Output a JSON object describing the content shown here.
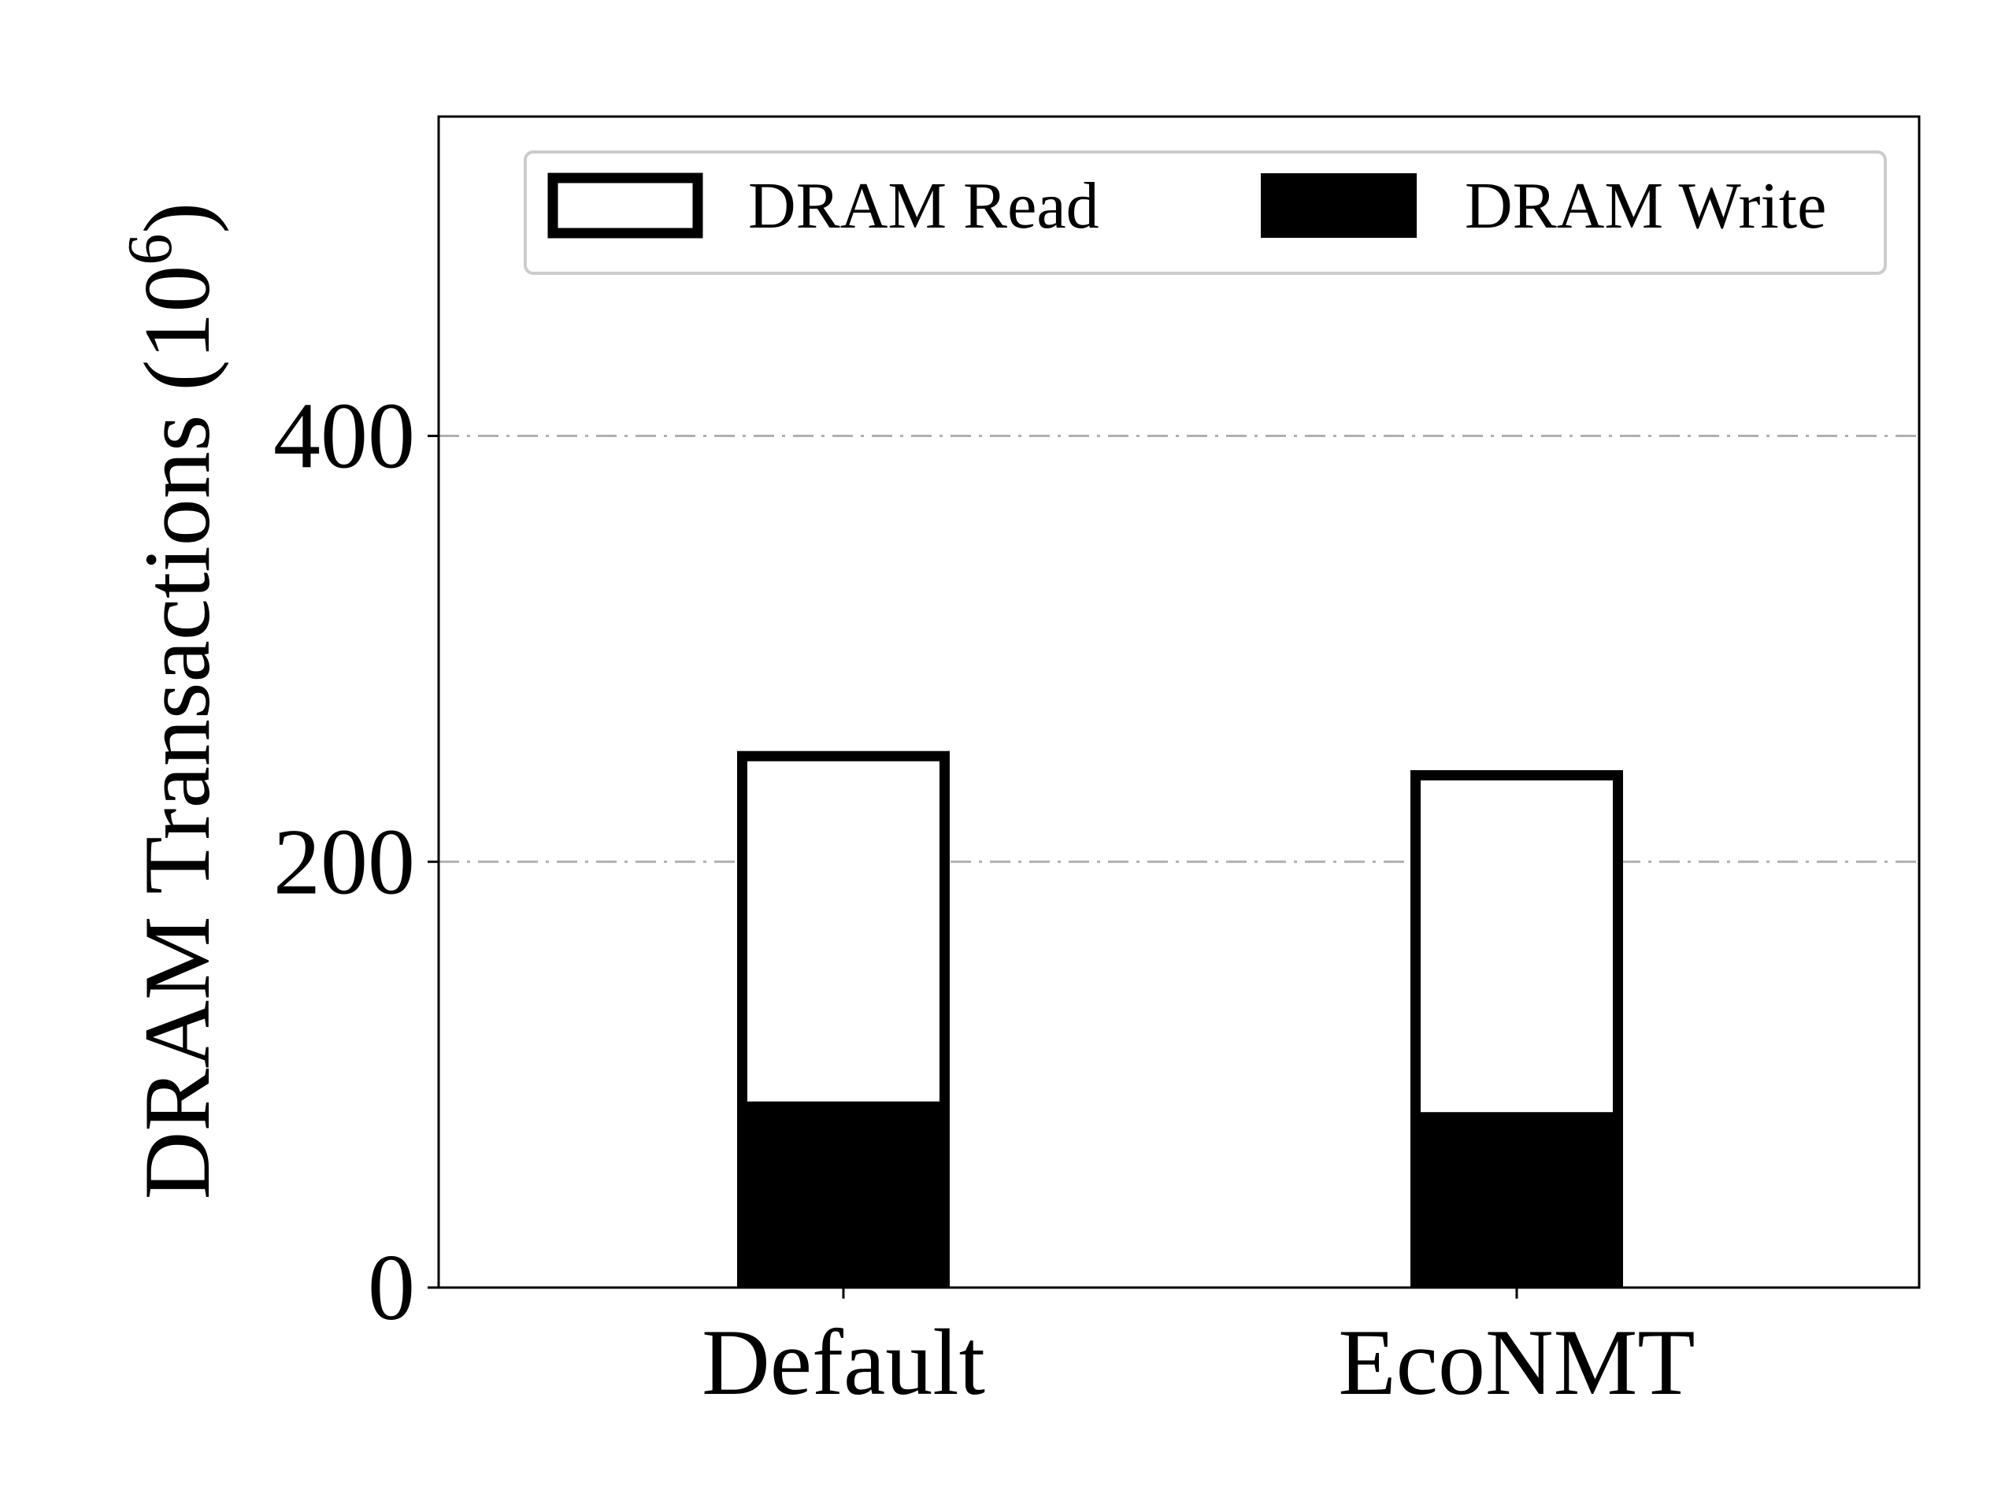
{
  "chart_data": {
    "type": "bar",
    "stacked": true,
    "categories": [
      "Default",
      "EcoNMT"
    ],
    "series": [
      {
        "name": "DRAM Write",
        "values": [
          85,
          80
        ],
        "fill": "#000000",
        "style": "solid"
      },
      {
        "name": "DRAM Read",
        "values": [
          167,
          163
        ],
        "fill": "#ffffff",
        "stroke": "#000000",
        "style": "outline"
      }
    ],
    "xlabel": "",
    "ylabel": "DRAM Transactions (10",
    "ylabel_sup": "6",
    "ylabel_close": ")",
    "ylim": [
      0,
      550
    ],
    "yticks": [
      0,
      200,
      400
    ],
    "grid": "y",
    "grid_style": "dash-dot",
    "grid_color": "#b0b0b0",
    "legend_position": "top",
    "legend_order": [
      "DRAM Read",
      "DRAM Write"
    ]
  }
}
